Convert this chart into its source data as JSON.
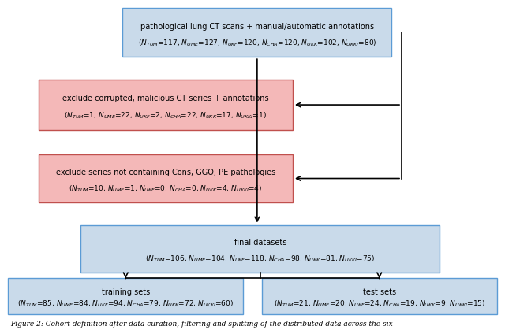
{
  "box1_t1": "pathological lung CT scans + manual/automatic annotations",
  "box1_t2": "(N_{TUM}=117, N_{UME}=127, N_{UKF}=120, N_{CHA}=120, N_{UKK}=102, N_{UKKI}=80)",
  "box2_t1": "exclude corrupted, malicious CT series + annotations",
  "box2_t2": "(N_{TUM}=1, N_{UME}=22, N_{UKF}=2, N_{CHA}=22, N_{UKK}=17, N_{UKKI}=1)",
  "box3_t1": "exclude series not containing Cons, GGO, PE pathologies",
  "box3_t2": "(N_{TUM}=10, N_{UME}=1, N_{UKF}=0, N_{CHA}=0, N_{UKK}=4, N_{UKKI}=4)",
  "box4_t1": "final datasets",
  "box4_t2": "(N_{TUM}=106, N_{UME}=104, N_{UKF}=118, N_{CHA}=98, N_{UKK}=81, N_{UKKI}=75)",
  "box5_t1": "training sets",
  "box5_t2": "(N_{TUM}=85, N_{UME}=84, N_{UKF}=94, N_{CHA}=79, N_{UKK}=72, N_{UKKI}=60)",
  "box6_t1": "test sets",
  "box6_t2": "(N_{TUM}=21, N_{UME}=20, N_{UKF}=24, N_{CHA}=19, N_{UKK}=9, N_{UKKI}=15)",
  "blue_fill": "#c9daea",
  "blue_edge": "#5b9bd5",
  "red_fill": "#f4b8b8",
  "red_edge": "#c0504d",
  "caption": "Figure 2: Cohort definition after data curation, filtering and splitting of the distributed data across the six"
}
